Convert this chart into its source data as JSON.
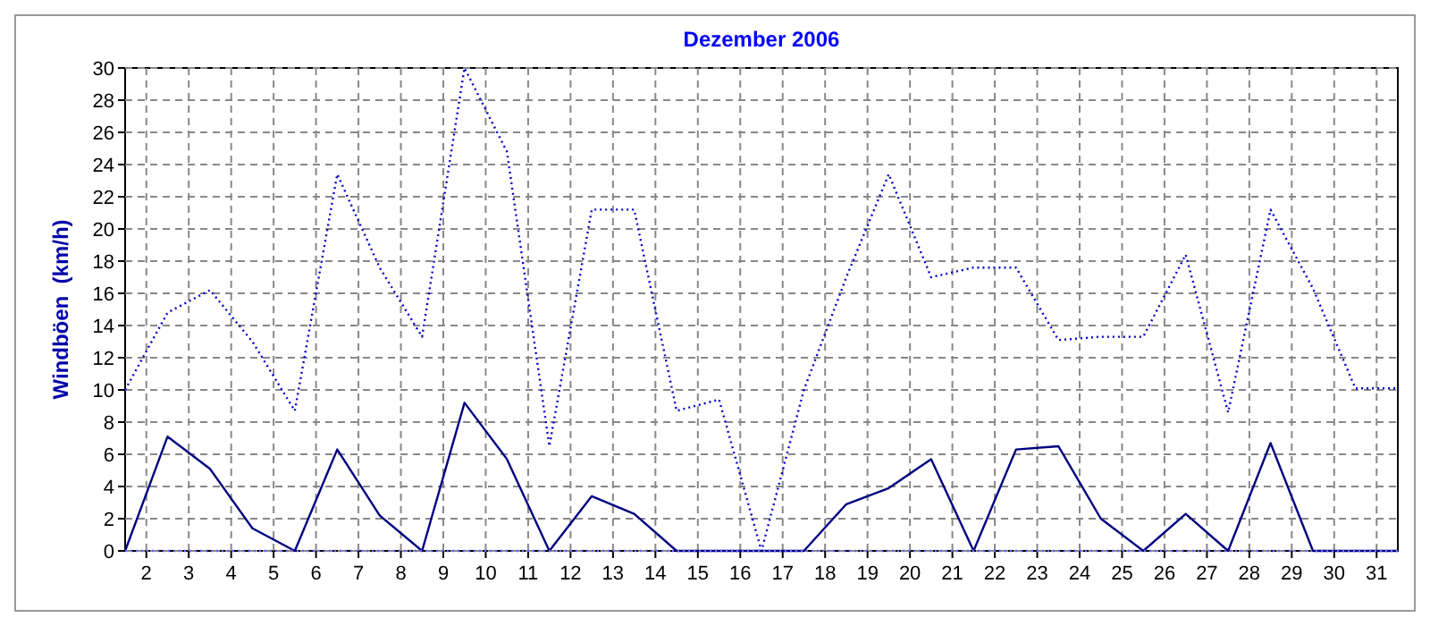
{
  "chart_data": {
    "type": "line",
    "title": "Dezember 2006",
    "ylabel": "Windböen  (km/h)",
    "x": [
      1.5,
      2.5,
      3.5,
      4.5,
      5.5,
      6.5,
      7.5,
      8.5,
      9.5,
      10.5,
      11.5,
      12.5,
      13.5,
      14.5,
      15.5,
      16.5,
      17.5,
      18.5,
      19.5,
      20.5,
      21.5,
      22.5,
      23.5,
      24.5,
      25.5,
      26.5,
      27.5,
      28.5,
      29.5,
      30.5,
      31.5
    ],
    "xlim": [
      1.5,
      31.5
    ],
    "xticks": [
      2,
      3,
      4,
      5,
      6,
      7,
      8,
      9,
      10,
      11,
      12,
      13,
      14,
      15,
      16,
      17,
      18,
      19,
      20,
      21,
      22,
      23,
      24,
      25,
      26,
      27,
      28,
      29,
      30,
      31
    ],
    "ylim": [
      0,
      30
    ],
    "yticks": [
      0,
      2,
      4,
      6,
      8,
      10,
      12,
      14,
      16,
      18,
      20,
      22,
      24,
      26,
      28,
      30
    ],
    "grid": true,
    "marker": "none",
    "series": [
      {
        "color": "#0000cc",
        "line_style": "dotted",
        "values": [
          10,
          14.8,
          16.2,
          13,
          8.7,
          23.4,
          17.6,
          13.3,
          30,
          24.8,
          6.5,
          21.2,
          21.2,
          8.7,
          9.4,
          0,
          10,
          17,
          23.4,
          17,
          17.6,
          17.6,
          13.1,
          13.3,
          13.3,
          18.4,
          8.6,
          21.2,
          16.3,
          10.1,
          10.1
        ]
      },
      {
        "color": "#000080",
        "line_style": "solid",
        "values": [
          0,
          7.1,
          5.1,
          1.4,
          0,
          6.3,
          2.2,
          0,
          9.2,
          5.7,
          0,
          3.4,
          2.3,
          0,
          0,
          0,
          0,
          2.9,
          3.9,
          5.7,
          0,
          6.3,
          6.5,
          2,
          0,
          2.3,
          0,
          6.7,
          0,
          0,
          0
        ]
      },
      {
        "color": "#6666ff",
        "line_style": "dotted",
        "values": [
          0,
          0,
          0,
          0,
          0,
          0,
          0,
          0,
          0,
          0,
          0,
          0,
          0,
          0,
          0,
          0,
          0,
          0,
          0,
          0,
          0,
          0,
          0,
          0,
          0,
          0,
          0,
          0,
          0,
          0,
          0
        ]
      }
    ]
  }
}
